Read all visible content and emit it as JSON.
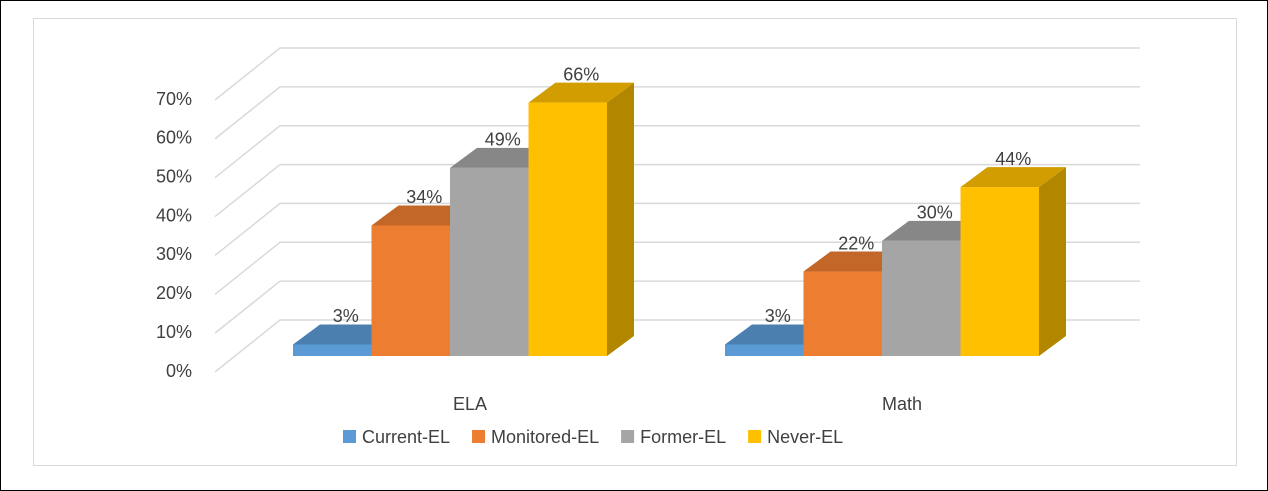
{
  "chart_data": {
    "type": "bar3d",
    "categories": [
      "ELA",
      "Math"
    ],
    "series": [
      {
        "name": "Current-EL",
        "color": "#5b9bd5",
        "values": [
          3,
          3
        ],
        "value_labels": [
          "3%",
          "3%"
        ]
      },
      {
        "name": "Monitored-EL",
        "color": "#ed7d31",
        "values": [
          34,
          22
        ],
        "value_labels": [
          "34%",
          "22%"
        ]
      },
      {
        "name": "Former-EL",
        "color": "#a5a5a5",
        "values": [
          49,
          30
        ],
        "value_labels": [
          "49%",
          "30%"
        ]
      },
      {
        "name": "Never-EL",
        "color": "#ffc000",
        "values": [
          66,
          44
        ],
        "value_labels": [
          "66%",
          "44%"
        ]
      }
    ],
    "ylim": [
      0,
      70
    ],
    "yticks": [
      {
        "value": 0,
        "label": "0%"
      },
      {
        "value": 10,
        "label": "10%"
      },
      {
        "value": 20,
        "label": "20%"
      },
      {
        "value": 30,
        "label": "30%"
      },
      {
        "value": 40,
        "label": "40%"
      },
      {
        "value": 50,
        "label": "50%"
      },
      {
        "value": 60,
        "label": "60%"
      },
      {
        "value": 70,
        "label": "70%"
      }
    ],
    "grid": true,
    "legend": "bottom"
  }
}
